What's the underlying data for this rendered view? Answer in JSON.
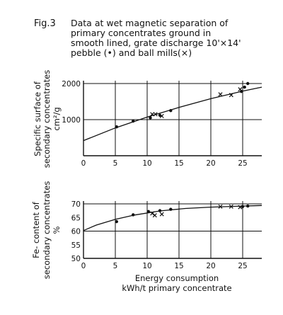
{
  "figure": {
    "label": "Fig.3",
    "title": "Data at wet magnetic separation of\nprimary concentrates ground in\nsmooth lined, grate discharge 10'×14'\npebble (•) and ball mills(×)"
  },
  "chart_data": [
    {
      "type": "scatter",
      "xlim": [
        0,
        28
      ],
      "ylim": [
        0,
        2000
      ],
      "x_ticks": [
        0,
        5,
        10,
        15,
        20,
        25
      ],
      "x_tick_labels": [
        "0",
        "5",
        "10",
        "15",
        "20",
        "25"
      ],
      "y_ticks": [
        1000,
        2000
      ],
      "y_tick_labels": [
        "1000",
        "2000"
      ],
      "ylabel_lines": [
        "Specific surface of",
        "secondary concentrates",
        "cm²/g"
      ],
      "grid": true,
      "series": [
        {
          "marker": "dot",
          "x": [
            5.2,
            7.8,
            10.5,
            12.0,
            13.7,
            24.8,
            25.3,
            25.8
          ],
          "y": [
            800,
            960,
            1050,
            1120,
            1250,
            1780,
            1900,
            2000
          ]
        },
        {
          "marker": "x",
          "x": [
            10.8,
            11.3,
            12.3,
            21.5,
            23.2,
            24.6
          ],
          "y": [
            1150,
            1150,
            1100,
            1700,
            1680,
            1840
          ]
        }
      ],
      "trend": {
        "x": [
          0,
          5,
          10,
          15,
          20,
          25,
          28
        ],
        "y": [
          420,
          770,
          1070,
          1340,
          1580,
          1790,
          1900
        ]
      }
    },
    {
      "type": "scatter",
      "xlim": [
        0,
        28
      ],
      "ylim": [
        50,
        70
      ],
      "x_ticks": [
        0,
        5,
        10,
        15,
        20,
        25
      ],
      "x_tick_labels": [
        "0",
        "5",
        "10",
        "15",
        "20",
        "25"
      ],
      "y_ticks": [
        50,
        55,
        60,
        65,
        70
      ],
      "y_tick_labels": [
        "50",
        "55",
        "60",
        "65",
        "70"
      ],
      "ylabel_lines": [
        "Fe- content of",
        "secondary concentrates",
        "%"
      ],
      "xlabel_lines": [
        "Energy consumption",
        "kWh/t primary concentrate"
      ],
      "grid": true,
      "series": [
        {
          "marker": "dot",
          "x": [
            5.2,
            7.8,
            10.2,
            12.0,
            13.7,
            25.0,
            25.8
          ],
          "y": [
            63.5,
            66.0,
            67.2,
            67.5,
            68.0,
            69.0,
            69.2
          ]
        },
        {
          "marker": "x",
          "x": [
            10.8,
            11.2,
            12.3,
            21.5,
            23.2,
            24.6
          ],
          "y": [
            66.5,
            65.8,
            66.2,
            69.0,
            69.0,
            68.8
          ]
        }
      ],
      "trend": {
        "x": [
          0,
          2,
          5,
          8,
          12,
          16,
          20,
          25,
          28
        ],
        "y": [
          60.2,
          62.2,
          64.3,
          65.9,
          67.4,
          68.3,
          68.8,
          69.2,
          69.4
        ]
      }
    }
  ]
}
